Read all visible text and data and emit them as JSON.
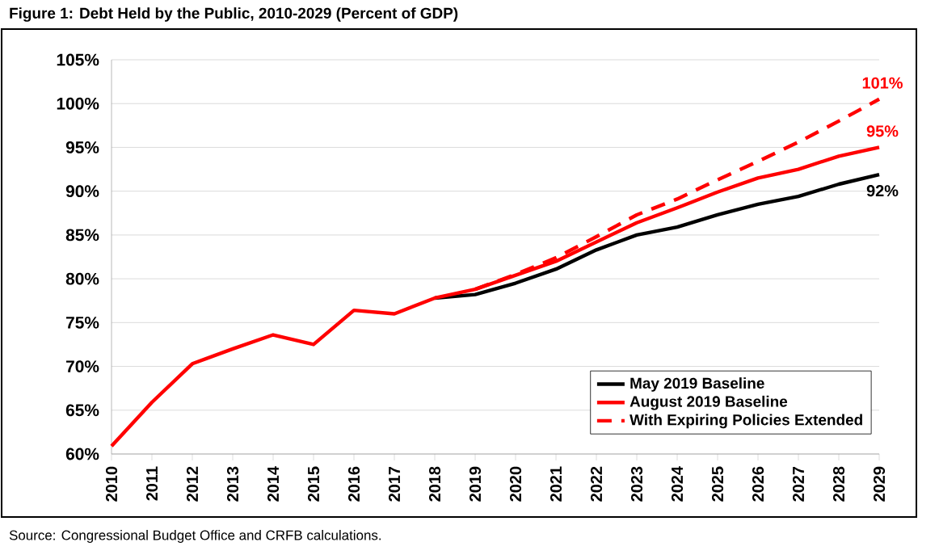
{
  "chart_data": {
    "type": "line",
    "title": "Figure 1: Debt Held by the Public, 2010-2029 (Percent of GDP)",
    "categories": [
      "2010",
      "2011",
      "2012",
      "2013",
      "2014",
      "2015",
      "2016",
      "2017",
      "2018",
      "2019",
      "2020",
      "2021",
      "2022",
      "2023",
      "2024",
      "2025",
      "2026",
      "2027",
      "2028",
      "2029"
    ],
    "series": [
      {
        "name": "May 2019 Baseline",
        "color": "#000000",
        "line_style": "solid",
        "values": [
          null,
          null,
          null,
          null,
          null,
          null,
          null,
          null,
          77.8,
          78.2,
          79.5,
          81.1,
          83.3,
          85.0,
          85.9,
          87.3,
          88.5,
          89.4,
          90.8,
          91.9
        ],
        "value_labels": [
          null,
          null,
          null,
          null,
          null,
          null,
          null,
          null,
          null,
          null,
          null,
          null,
          null,
          null,
          null,
          null,
          null,
          null,
          null,
          "92%"
        ]
      },
      {
        "name": "August 2019 Baseline",
        "color": "#ff0000",
        "line_style": "solid",
        "values": [
          60.9,
          65.9,
          70.3,
          72.0,
          73.6,
          72.5,
          76.4,
          76.0,
          77.8,
          78.8,
          80.4,
          82.0,
          84.2,
          86.4,
          88.1,
          89.9,
          91.5,
          92.5,
          94.0,
          95.0
        ],
        "value_labels": [
          null,
          null,
          null,
          null,
          null,
          null,
          null,
          null,
          null,
          null,
          null,
          null,
          null,
          null,
          null,
          null,
          null,
          null,
          null,
          "95%"
        ]
      },
      {
        "name": "With Expiring Policies Extended",
        "color": "#ff0000",
        "line_style": "dashed",
        "values": [
          null,
          null,
          null,
          null,
          null,
          null,
          null,
          null,
          null,
          78.8,
          80.5,
          82.4,
          84.8,
          87.3,
          89.1,
          91.3,
          93.4,
          95.6,
          98.0,
          100.5
        ],
        "value_labels": [
          null,
          null,
          null,
          null,
          null,
          null,
          null,
          null,
          null,
          null,
          null,
          null,
          null,
          null,
          null,
          null,
          null,
          null,
          null,
          "101%"
        ]
      }
    ],
    "ylim": [
      60,
      105
    ],
    "yticks": [
      {
        "value": 60,
        "label": "60%"
      },
      {
        "value": 65,
        "label": "65%"
      },
      {
        "value": 70,
        "label": "70%"
      },
      {
        "value": 75,
        "label": "75%"
      },
      {
        "value": 80,
        "label": "80%"
      },
      {
        "value": 85,
        "label": "85%"
      },
      {
        "value": 90,
        "label": "90%"
      },
      {
        "value": 95,
        "label": "95%"
      },
      {
        "value": 100,
        "label": "100%"
      },
      {
        "value": 105,
        "label": "105%"
      }
    ],
    "grid": "y",
    "legend": "bottom right",
    "marker": "none",
    "annotations": [
      "Source: Congressional Budget Office and CRFB calculations."
    ]
  }
}
